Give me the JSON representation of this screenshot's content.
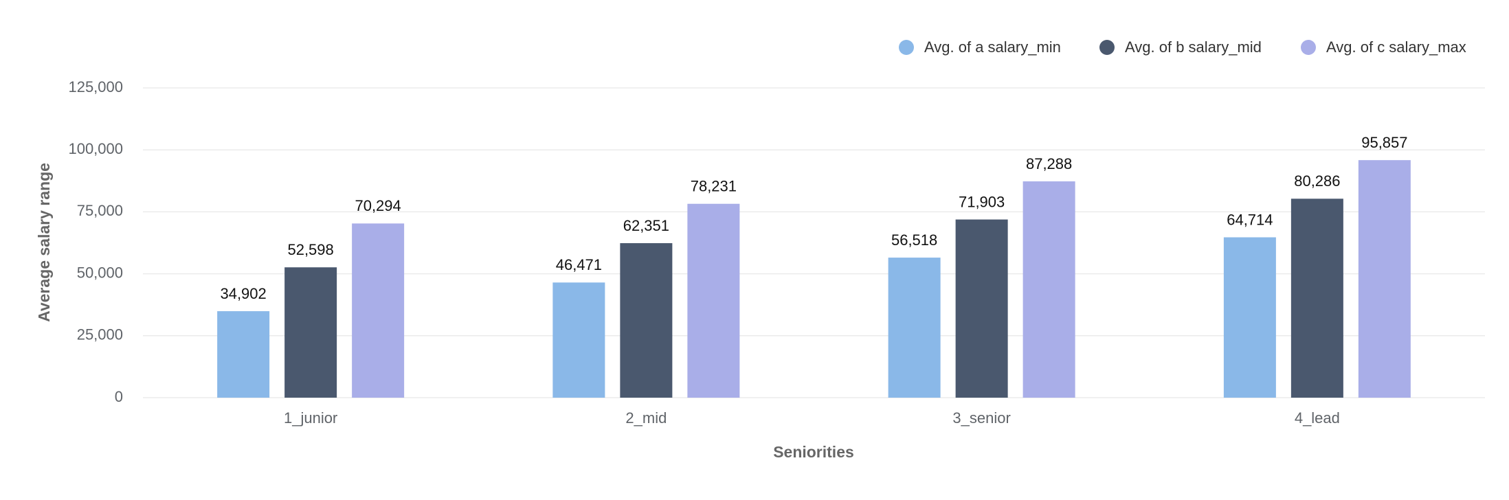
{
  "chart_data": {
    "type": "bar",
    "x_label": "Seniorities",
    "y_label": "Average salary range",
    "categories": [
      "1_junior",
      "2_mid",
      "3_senior",
      "4_lead"
    ],
    "series": [
      {
        "name": "Avg. of a salary_min",
        "color": "#8ab8e8",
        "values": [
          34902,
          46471,
          56518,
          64714
        ],
        "value_labels": [
          "34,902",
          "46,471",
          "56,518",
          "64,714"
        ]
      },
      {
        "name": "Avg. of b salary_mid",
        "color": "#4a586e",
        "values": [
          52598,
          62351,
          71903,
          80286
        ],
        "value_labels": [
          "52,598",
          "62,351",
          "71,903",
          "80,286"
        ]
      },
      {
        "name": "Avg. of c salary_max",
        "color": "#a9aee8",
        "values": [
          70294,
          78231,
          87288,
          95857
        ],
        "value_labels": [
          "70,294",
          "78,231",
          "87,288",
          "95,857"
        ]
      }
    ],
    "ylim": [
      0,
      125000
    ],
    "yticks": [
      0,
      {
        "value": 25000,
        "label": "25,000"
      },
      {
        "value": 50000,
        "label": "50,000"
      },
      {
        "value": 75000,
        "label": "75,000"
      },
      {
        "value": 100000,
        "label": "100,000"
      },
      {
        "value": 125000,
        "label": "125,000"
      }
    ],
    "grid": true,
    "legend": "top-right"
  }
}
